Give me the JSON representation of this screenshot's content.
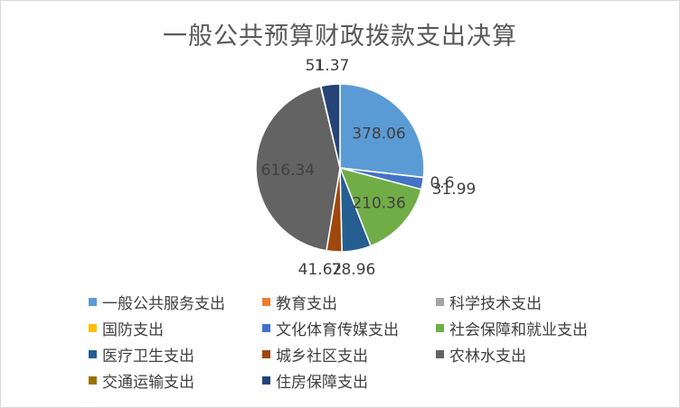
{
  "chart_data": {
    "type": "pie",
    "title": "一般公共预算财政拨款支出决算",
    "legend_position": "bottom",
    "slices": [
      {
        "name": "一般公共服务支出",
        "value": 378.06,
        "label": "378.06",
        "color": "#5b9bd5",
        "label_inside": true
      },
      {
        "name": "教育支出",
        "value": 0,
        "label": "",
        "color": "#ed7d31",
        "label_inside": false
      },
      {
        "name": "科学技术支出",
        "value": 0,
        "label": "",
        "color": "#a5a5a5",
        "label_inside": false
      },
      {
        "name": "国防支出",
        "value": 0.6,
        "label": "0.6",
        "color": "#ffc000",
        "label_inside": false
      },
      {
        "name": "文化体育传媒支出",
        "value": 31.99,
        "label": "31.99",
        "color": "#4472c4",
        "label_inside": false
      },
      {
        "name": "社会保障和就业支出",
        "value": 210.36,
        "label": "210.36",
        "color": "#70ad47",
        "label_inside": true
      },
      {
        "name": "医疗卫生支出",
        "value": 78.96,
        "label": "78.96",
        "color": "#255e91",
        "label_inside": false
      },
      {
        "name": "城乡社区支出",
        "value": 41.62,
        "label": "41.62",
        "color": "#9e480e",
        "label_inside": false
      },
      {
        "name": "农林水支出",
        "value": 616.34,
        "label": "616.34",
        "color": "#636363",
        "label_inside": true
      },
      {
        "name": "交通运输支出",
        "value": 1,
        "label": "1",
        "color": "#997300",
        "label_inside": false
      },
      {
        "name": "住房保障支出",
        "value": 51.37,
        "label": "51.37",
        "color": "#264478",
        "label_inside": false
      }
    ]
  }
}
